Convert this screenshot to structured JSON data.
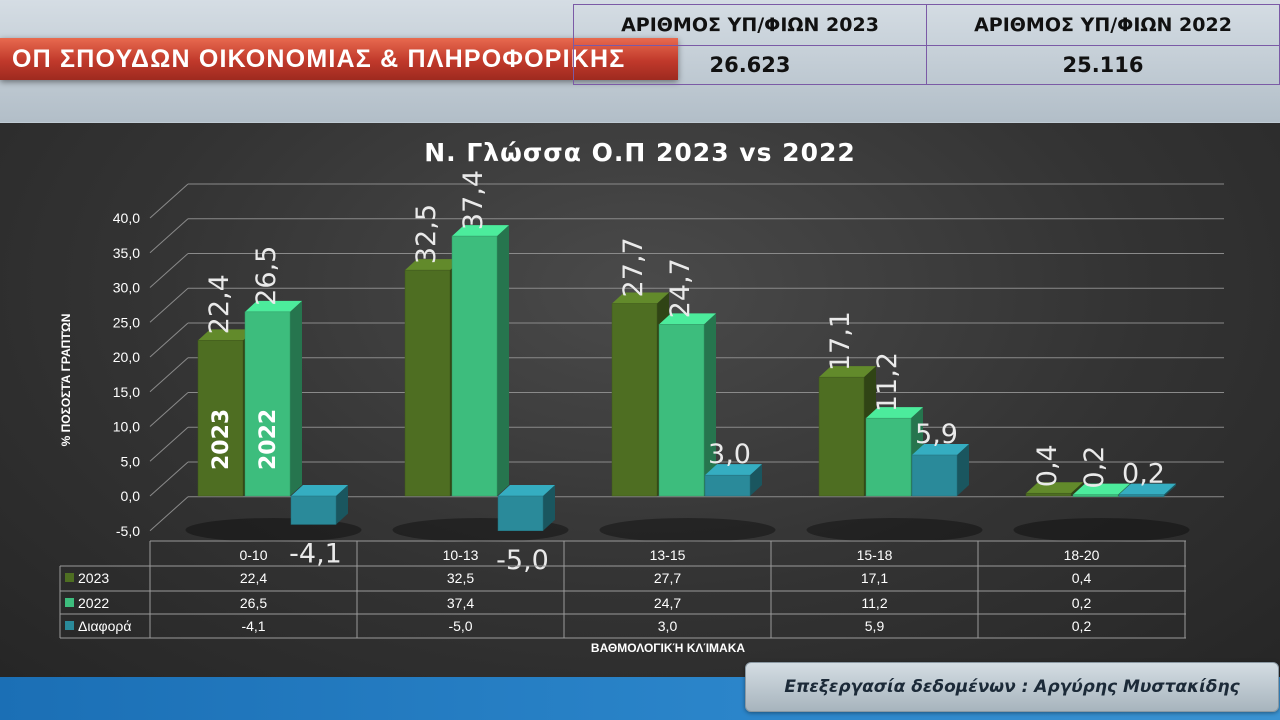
{
  "header": {
    "title": "ΟΠ ΣΠΟΥΔΩΝ ΟΙΚΟΝΟΜΙΑΣ & ΠΛΗΡΟΦΟΡΙΚΗΣ",
    "stats": [
      {
        "label": "ΑΡΙΘΜΟΣ ΥΠ/ΦΙΩΝ 2023",
        "value": "26.623"
      },
      {
        "label": "ΑΡΙΘΜΟΣ ΥΠ/ΦΙΩΝ 2022",
        "value": "25.116"
      }
    ]
  },
  "footer": {
    "credit": "Επεξεργασία δεδομένων : Αργύρης Μυστακίδης"
  },
  "chart_data": {
    "type": "bar",
    "title": "Ν. Γλώσσα Ο.Π 2023 vs 2022",
    "xlabel": "ΒΑΘΜΟΛΟΓΙΚΉ ΚΛΊΜΑΚΑ",
    "ylabel": "% ΠΟΣΟΣΤΆ ΓΡΑΠΤΏΝ",
    "categories": [
      "0-10",
      "10-13",
      "13-15",
      "15-18",
      "18-20"
    ],
    "series": [
      {
        "name": "2023",
        "values": [
          22.4,
          32.5,
          27.7,
          17.1,
          0.4
        ],
        "labels": [
          "22,4",
          "32,5",
          "27,7",
          "17,1",
          "0,4"
        ],
        "color": "#4e6e22"
      },
      {
        "name": "2022",
        "values": [
          26.5,
          37.4,
          24.7,
          11.2,
          0.2
        ],
        "labels": [
          "26,5",
          "37,4",
          "24,7",
          "11,2",
          "0,2"
        ],
        "color": "#3dbd7d"
      },
      {
        "name": "Διαφορά",
        "values": [
          -4.1,
          -5.0,
          3.0,
          5.9,
          0.2
        ],
        "labels": [
          "-4,1",
          "-5,0",
          "3,0",
          "5,9",
          "0,2"
        ],
        "color": "#2a8a9a"
      }
    ],
    "ylim": [
      -5,
      40
    ],
    "yticks": [
      "-5,0",
      "0,0",
      "5,0",
      "10,0",
      "15,0",
      "20,0",
      "25,0",
      "30,0",
      "35,0",
      "40,0"
    ],
    "bar_annotations": [
      "2023",
      "2022"
    ],
    "data_table": true,
    "grid": true
  }
}
